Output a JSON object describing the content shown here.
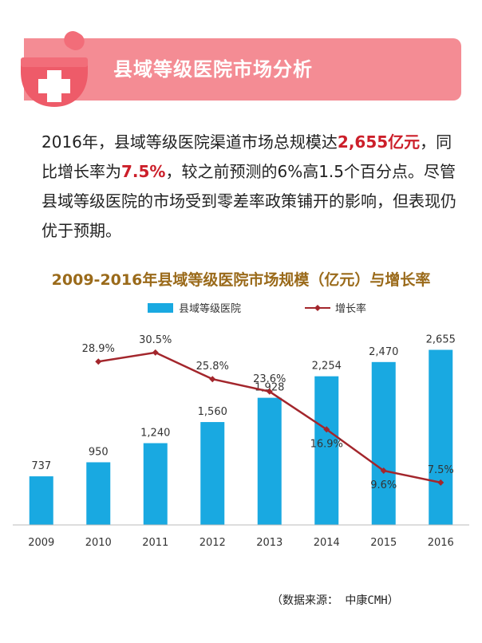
{
  "header": {
    "title": "县域等级医院市场分析",
    "icon": "medical-cross-icon",
    "accent_color": "#f48c94"
  },
  "intro": {
    "p1": "2016年，县域等级医院渠道市场总规模达",
    "p2": "2,655亿元",
    "p3": "，同比增长率为",
    "p4": "7.5%",
    "p5": "，较之前预测的6%高1.5个百分点。尽管县域等级医院的市场受到零差率政策铺开的影响，但表现仍优于预期。"
  },
  "chart_data": {
    "type": "bar",
    "title": "2009-2016年县域等级医院市场规模（亿元）与增长率",
    "categories": [
      "2009",
      "2010",
      "2011",
      "2012",
      "2013",
      "2014",
      "2015",
      "2016"
    ],
    "series": [
      {
        "name": "县域等级医院",
        "type": "bar",
        "color": "#19a9e1",
        "values": [
          737,
          950,
          1240,
          1560,
          1928,
          2254,
          2470,
          2655
        ],
        "labels": [
          "737",
          "950",
          "1,240",
          "1,560",
          "1,928",
          "2,254",
          "2,470",
          "2,655"
        ]
      },
      {
        "name": "增长率",
        "type": "line",
        "color": "#a3262c",
        "x": [
          "2010",
          "2011",
          "2012",
          "2013",
          "2014",
          "2015",
          "2016"
        ],
        "values": [
          28.9,
          30.5,
          25.8,
          23.6,
          16.9,
          9.6,
          7.5
        ],
        "labels": [
          "28.9%",
          "30.5%",
          "25.8%",
          "23.6%",
          "16.9%",
          "9.6%",
          "7.5%"
        ]
      }
    ],
    "ylim": [
      0,
      3000
    ],
    "ylim_secondary": [
      0,
      35
    ],
    "legend": "top",
    "grid": false
  },
  "footer": {
    "source": "（数据来源： 中康CMH）"
  }
}
